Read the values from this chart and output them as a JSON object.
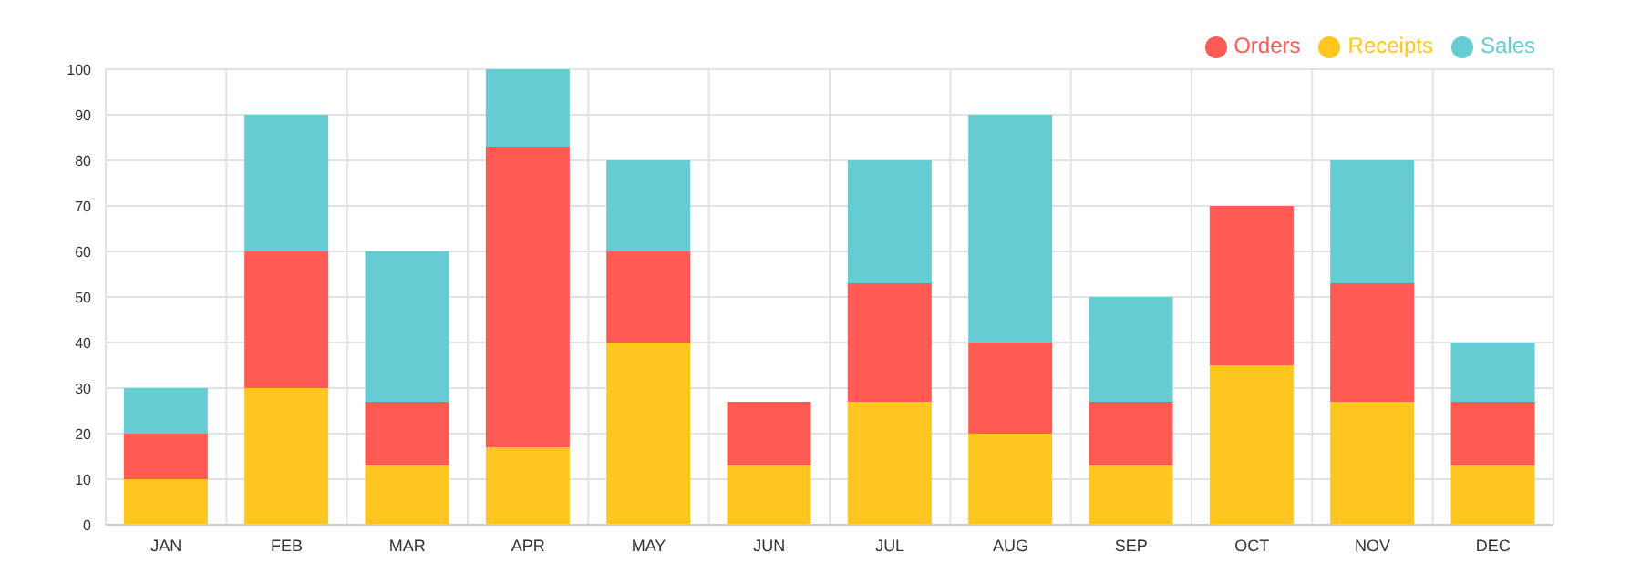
{
  "chart_data": {
    "type": "bar",
    "stacked": true,
    "categories": [
      "JAN",
      "FEB",
      "MAR",
      "APR",
      "MAY",
      "JUN",
      "JUL",
      "AUG",
      "SEP",
      "OCT",
      "NOV",
      "DEC"
    ],
    "series": [
      {
        "name": "Receipts",
        "color": "#fec61f",
        "values": [
          10,
          30,
          13,
          17,
          40,
          13,
          27,
          20,
          13,
          35,
          27,
          13
        ]
      },
      {
        "name": "Orders",
        "color": "#ff5a54",
        "values": [
          10,
          30,
          14,
          66,
          20,
          14,
          26,
          20,
          14,
          35,
          26,
          14
        ]
      },
      {
        "name": "Sales",
        "color": "#66cbd3",
        "values": [
          10,
          30,
          33,
          17,
          20,
          0,
          27,
          50,
          23,
          0,
          27,
          13
        ]
      }
    ],
    "ylim": [
      0,
      100
    ],
    "yticks": [
      0,
      10,
      20,
      30,
      40,
      50,
      60,
      70,
      80,
      90,
      100
    ],
    "grid": true,
    "legend": "top right"
  }
}
